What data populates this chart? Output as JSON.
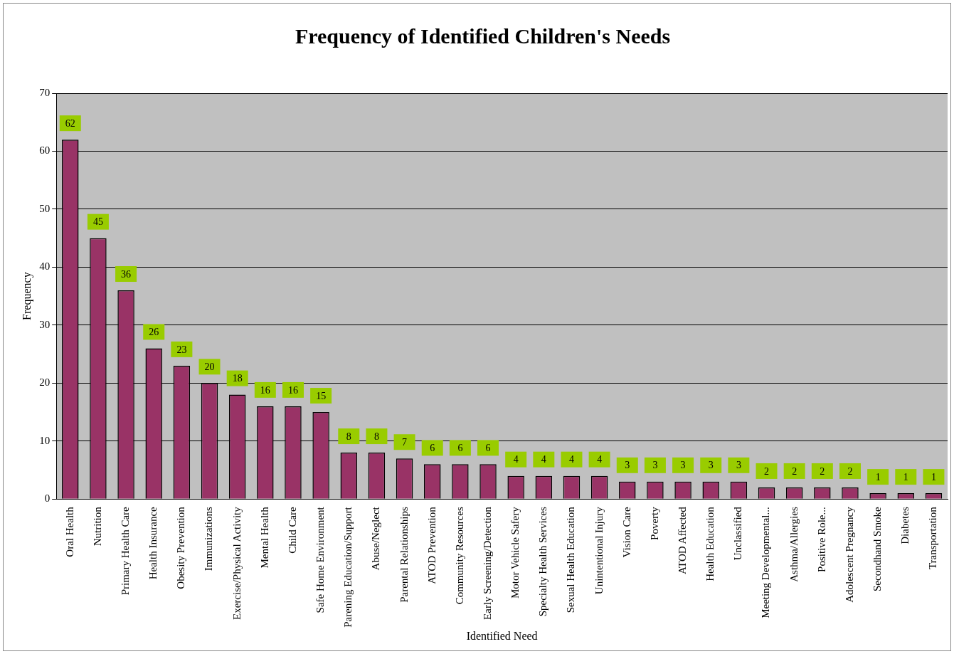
{
  "chart_data": {
    "type": "bar",
    "title": "Frequency of Identified Children's Needs",
    "xlabel": "Identified Need",
    "ylabel": "Frequency",
    "categories": [
      "Oral Health",
      "Nutrition",
      "Primary Health Care",
      "Health Insurance",
      "Obesity Prevention",
      "Immunizations",
      "Exercise/Physical Activity",
      "Mental Health",
      "Child Care",
      "Safe Home Environment",
      "Parening Education/Support",
      "Abuse/Neglect",
      "Parental Relationships",
      "ATOD Prevention",
      "Community Resources",
      "Early Screening/Detection",
      "Motor Vehicle Safery",
      "Specialty Health Services",
      "Sexual Health Education",
      "Unintentional Injury",
      "Vision Care",
      "Poverty",
      "ATOD Affected",
      "Health Education",
      "Unclassified",
      "Meeting Developmental...",
      "Asthma/Allergies",
      "Positive Role...",
      "Adolescent Pregnancy",
      "Secondhand Smoke",
      "Diabetes",
      "Transportation"
    ],
    "values": [
      62,
      45,
      36,
      26,
      23,
      20,
      18,
      16,
      16,
      15,
      8,
      8,
      7,
      6,
      6,
      6,
      4,
      4,
      4,
      4,
      3,
      3,
      3,
      3,
      3,
      2,
      2,
      2,
      2,
      1,
      1,
      1
    ],
    "color": "#993366",
    "ylim": [
      0,
      70
    ],
    "yticks": [
      0,
      10,
      20,
      30,
      40,
      50,
      60,
      70
    ],
    "grid": "y",
    "legend": false,
    "data_labels": true
  }
}
